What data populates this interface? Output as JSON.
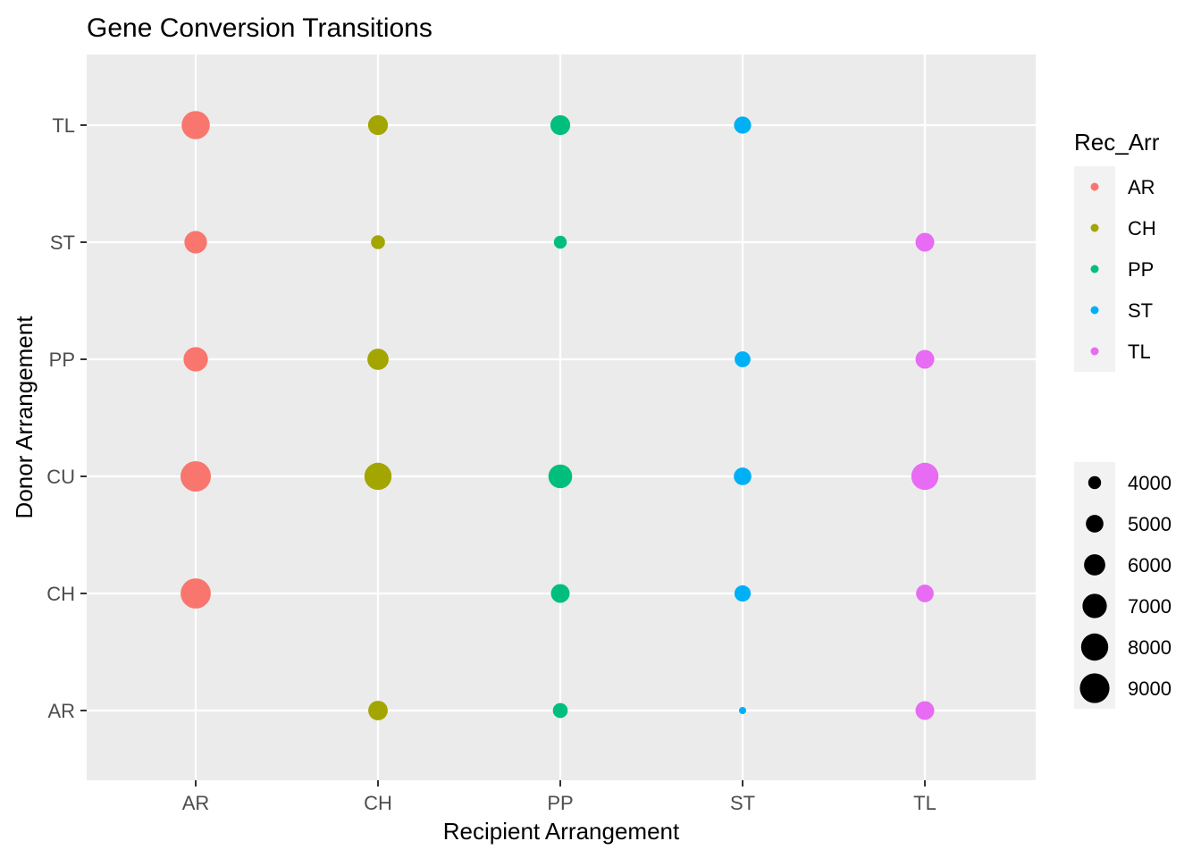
{
  "chart_data": {
    "type": "scatter",
    "title": "Gene Conversion Transitions",
    "xlabel": "Recipient Arrangement",
    "ylabel": "Donor Arrangement",
    "x_categories": [
      "AR",
      "CH",
      "PP",
      "ST",
      "TL"
    ],
    "y_categories": [
      "AR",
      "CH",
      "CU",
      "PP",
      "ST",
      "TL"
    ],
    "color_legend": {
      "title": "Rec_Arr",
      "entries": [
        {
          "label": "AR",
          "color": "#F8766D"
        },
        {
          "label": "CH",
          "color": "#A3A500"
        },
        {
          "label": "PP",
          "color": "#00BF7D"
        },
        {
          "label": "ST",
          "color": "#00B0F6"
        },
        {
          "label": "TL",
          "color": "#E76BF3"
        }
      ]
    },
    "size_legend": {
      "title": "",
      "values": [
        "4000",
        "5000",
        "6000",
        "7000",
        "8000",
        "9000"
      ]
    },
    "size_range": [
      3200,
      9300
    ],
    "points": [
      {
        "x": "AR",
        "y": "TL",
        "size": 8400
      },
      {
        "x": "CH",
        "y": "TL",
        "size": 5600
      },
      {
        "x": "PP",
        "y": "TL",
        "size": 5600
      },
      {
        "x": "ST",
        "y": "TL",
        "size": 4900
      },
      {
        "x": "AR",
        "y": "ST",
        "size": 6400
      },
      {
        "x": "CH",
        "y": "ST",
        "size": 4200
      },
      {
        "x": "PP",
        "y": "ST",
        "size": 4000
      },
      {
        "x": "TL",
        "y": "ST",
        "size": 5300
      },
      {
        "x": "AR",
        "y": "PP",
        "size": 7000
      },
      {
        "x": "CH",
        "y": "PP",
        "size": 6000
      },
      {
        "x": "ST",
        "y": "PP",
        "size": 4600
      },
      {
        "x": "TL",
        "y": "PP",
        "size": 5300
      },
      {
        "x": "AR",
        "y": "CU",
        "size": 9300
      },
      {
        "x": "CH",
        "y": "CU",
        "size": 8000
      },
      {
        "x": "PP",
        "y": "CU",
        "size": 6800
      },
      {
        "x": "ST",
        "y": "CU",
        "size": 5000
      },
      {
        "x": "TL",
        "y": "CU",
        "size": 8000
      },
      {
        "x": "AR",
        "y": "CH",
        "size": 9200
      },
      {
        "x": "PP",
        "y": "CH",
        "size": 5300
      },
      {
        "x": "ST",
        "y": "CH",
        "size": 4700
      },
      {
        "x": "TL",
        "y": "CH",
        "size": 5000
      },
      {
        "x": "CH",
        "y": "AR",
        "size": 5500
      },
      {
        "x": "PP",
        "y": "AR",
        "size": 4400
      },
      {
        "x": "ST",
        "y": "AR",
        "size": 3200
      },
      {
        "x": "TL",
        "y": "AR",
        "size": 5300
      }
    ],
    "grid": true,
    "panel_background": "#EBEBEB",
    "legend_position": "right"
  }
}
